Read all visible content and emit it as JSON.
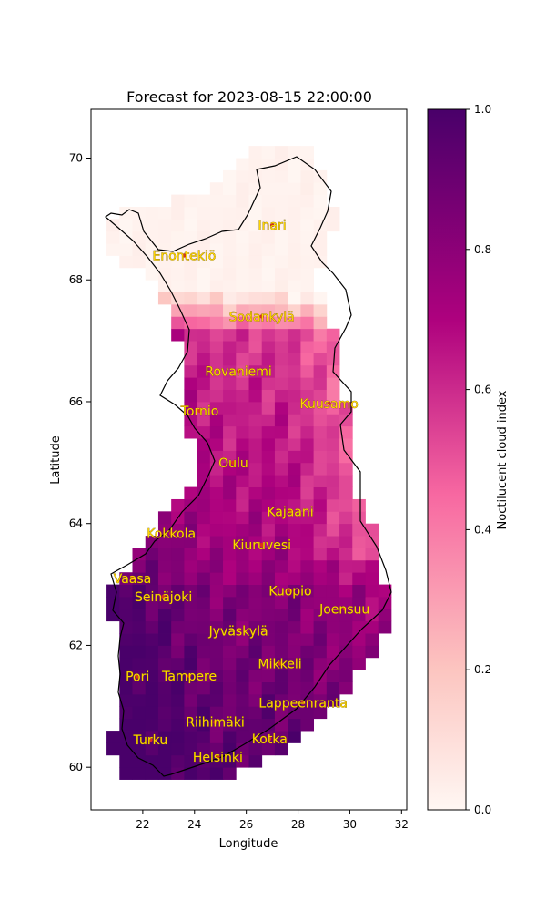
{
  "title": "Forecast for 2023-08-15 22:00:00",
  "chart_data": {
    "type": "heatmap",
    "title": "Forecast for 2023-08-15 22:00:00",
    "xlabel": "Longitude",
    "ylabel": "Latitude",
    "xlim": [
      20.0,
      32.2
    ],
    "ylim": [
      59.3,
      70.8
    ],
    "x_ticks": [
      "22",
      "24",
      "26",
      "28",
      "30",
      "32"
    ],
    "y_ticks": [
      "60",
      "62",
      "64",
      "66",
      "68",
      "70"
    ],
    "colorbar": {
      "label": "Noctilucent cloud index",
      "range": [
        0.0,
        1.0
      ],
      "ticks": [
        "0.0",
        "0.2",
        "0.4",
        "0.6",
        "0.8",
        "1.0"
      ],
      "colormap": [
        "#fff7f3",
        "#fcc5c0",
        "#f768a1",
        "#ae017e",
        "#49006a"
      ]
    },
    "cities": [
      {
        "name": "Inari",
        "lon": 27.0,
        "lat": 68.9
      },
      {
        "name": "Enontekiö",
        "lon": 23.6,
        "lat": 68.4
      },
      {
        "name": "Sodankylä",
        "lon": 26.6,
        "lat": 67.4
      },
      {
        "name": "Rovaniemi",
        "lon": 25.7,
        "lat": 66.5
      },
      {
        "name": "Kuusamo",
        "lon": 29.2,
        "lat": 65.97
      },
      {
        "name": "Tornio",
        "lon": 24.2,
        "lat": 65.85
      },
      {
        "name": "Oulu",
        "lon": 25.5,
        "lat": 65.0
      },
      {
        "name": "Kajaani",
        "lon": 27.7,
        "lat": 64.2
      },
      {
        "name": "Kokkola",
        "lon": 23.1,
        "lat": 63.84
      },
      {
        "name": "Kiuruvesi",
        "lon": 26.6,
        "lat": 63.65
      },
      {
        "name": "Vaasa",
        "lon": 21.6,
        "lat": 63.1
      },
      {
        "name": "Kuopio",
        "lon": 27.7,
        "lat": 62.9
      },
      {
        "name": "Seinäjoki",
        "lon": 22.8,
        "lat": 62.8
      },
      {
        "name": "Joensuu",
        "lon": 29.8,
        "lat": 62.6
      },
      {
        "name": "Jyväskylä",
        "lon": 25.7,
        "lat": 62.24
      },
      {
        "name": "Mikkeli",
        "lon": 27.3,
        "lat": 61.7
      },
      {
        "name": "Pori",
        "lon": 21.8,
        "lat": 61.49
      },
      {
        "name": "Tampere",
        "lon": 23.8,
        "lat": 61.5
      },
      {
        "name": "Lappeenranta",
        "lon": 28.2,
        "lat": 61.06
      },
      {
        "name": "Riihimäki",
        "lon": 24.8,
        "lat": 60.74
      },
      {
        "name": "Turku",
        "lon": 22.3,
        "lat": 60.45
      },
      {
        "name": "Kotka",
        "lon": 26.9,
        "lat": 60.47
      },
      {
        "name": "Helsinki",
        "lon": 24.9,
        "lat": 60.17
      }
    ],
    "grid_summary": "Values near 0 in northern Lapland, 0.4–0.7 in central/eastern Lapland and Kainuu, 0.7–0.95 in western and southern Finland"
  }
}
